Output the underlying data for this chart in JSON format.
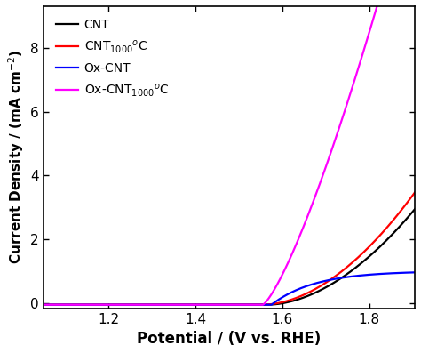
{
  "x_min": 1.05,
  "x_max": 1.905,
  "y_min": -0.15,
  "y_max": 9.3,
  "xlabel": "Potential / (V vs. RHE)",
  "ylabel": "Current Density / (mA cm$^{-2}$)",
  "xticks": [
    1.2,
    1.4,
    1.6,
    1.8
  ],
  "yticks": [
    0,
    2,
    4,
    6,
    8
  ],
  "line_colors": [
    "black",
    "red",
    "blue",
    "magenta"
  ],
  "legend_labels": [
    "CNT",
    "CNT$_{1000}$$^{\\mathrm{o}}$C",
    "Ox-CNT",
    "Ox-CNT$_{1000}$$^{\\mathrm{o}}$C"
  ],
  "onset_cnt": 1.565,
  "onset_cnt1000": 1.555,
  "onset_oxcnt": 1.575,
  "onset_oxcnt1000": 1.555,
  "k_cnt": 22.0,
  "k_cnt1000": 24.5,
  "k_oxcnt_sat": 1.05,
  "k_oxcnt_rate": 10.0,
  "k_oxcnt1000": 53.0,
  "figsize": [
    4.74,
    3.97
  ],
  "dpi": 100,
  "lw": 1.6
}
